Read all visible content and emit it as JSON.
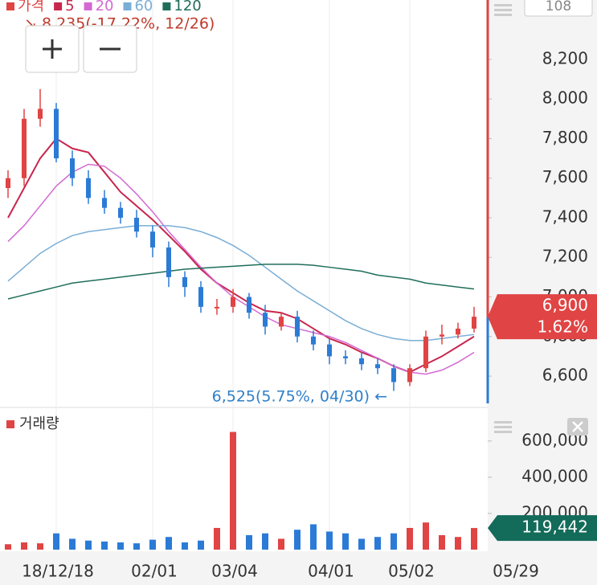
{
  "chart_data": [
    {
      "type": "candlestick",
      "categories": [
        null,
        null,
        null,
        "18/12/18",
        null,
        null,
        null,
        null,
        null,
        "02/01",
        null,
        null,
        null,
        null,
        "03/04",
        null,
        null,
        null,
        null,
        null,
        "04/01",
        null,
        null,
        null,
        null,
        "05/02",
        null,
        null,
        null,
        null
      ],
      "x_end_label": "05/29",
      "price_label": "가격",
      "open": [
        7550,
        7600,
        7900,
        7950,
        7700,
        7600,
        7500,
        7450,
        7400,
        7330,
        7250,
        7100,
        7050,
        6950,
        6950,
        7000,
        6920,
        6850,
        6900,
        6800,
        6760,
        6700,
        6690,
        6660,
        6640,
        6570,
        6640,
        6800,
        6810,
        6840
      ],
      "high": [
        7640,
        7950,
        8050,
        7980,
        7740,
        7640,
        7540,
        7480,
        7440,
        7360,
        7280,
        7130,
        7080,
        6990,
        7040,
        7020,
        6960,
        6920,
        6930,
        6830,
        6790,
        6730,
        6720,
        6690,
        6660,
        6660,
        6830,
        6860,
        6870,
        6950
      ],
      "low": [
        7500,
        7560,
        7860,
        7680,
        7560,
        7470,
        7420,
        7370,
        7300,
        7200,
        7050,
        7000,
        6920,
        6910,
        6920,
        6890,
        6810,
        6830,
        6770,
        6730,
        6660,
        6660,
        6630,
        6610,
        6525,
        6550,
        6620,
        6760,
        6790,
        6820
      ],
      "close": [
        7600,
        7900,
        7950,
        7700,
        7600,
        7500,
        7450,
        7400,
        7330,
        7250,
        7100,
        7050,
        6950,
        6950,
        7000,
        6920,
        6850,
        6900,
        6800,
        6760,
        6700,
        6690,
        6660,
        6640,
        6570,
        6640,
        6800,
        6810,
        6840,
        6900
      ],
      "up_color": "#e04444",
      "down_color": "#2b7bd6",
      "series": [
        {
          "name": "5",
          "color": "#c8264e",
          "values": [
            7400,
            7550,
            7700,
            7800,
            7750,
            7730,
            7630,
            7530,
            7460,
            7390,
            7310,
            7230,
            7140,
            7070,
            7020,
            6970,
            6930,
            6920,
            6890,
            6840,
            6790,
            6760,
            6720,
            6690,
            6650,
            6620,
            6660,
            6700,
            6750,
            6800
          ]
        },
        {
          "name": "20",
          "color": "#d36ad3",
          "values": [
            7280,
            7360,
            7460,
            7560,
            7630,
            7670,
            7660,
            7600,
            7520,
            7430,
            7330,
            7240,
            7150,
            7070,
            7000,
            6950,
            6900,
            6860,
            6840,
            6820,
            6800,
            6770,
            6730,
            6690,
            6650,
            6620,
            6610,
            6630,
            6670,
            6720
          ]
        },
        {
          "name": "60",
          "color": "#7aaed6",
          "values": [
            7080,
            7150,
            7220,
            7270,
            7310,
            7330,
            7340,
            7350,
            7360,
            7360,
            7360,
            7350,
            7330,
            7300,
            7260,
            7210,
            7150,
            7090,
            7030,
            6980,
            6930,
            6880,
            6840,
            6810,
            6790,
            6780,
            6780,
            6790,
            6800,
            6810
          ]
        },
        {
          "name": "120",
          "color": "#1f6e5a",
          "values": [
            6990,
            7010,
            7030,
            7050,
            7070,
            7080,
            7090,
            7100,
            7110,
            7120,
            7130,
            7140,
            7145,
            7150,
            7155,
            7160,
            7165,
            7165,
            7165,
            7160,
            7150,
            7140,
            7130,
            7110,
            7100,
            7090,
            7070,
            7060,
            7050,
            7040
          ]
        }
      ],
      "ylim": [
        6450,
        8500
      ],
      "yticks": [
        {
          "value": 6600,
          "label": "6,600"
        },
        {
          "value": 6800,
          "label": "6,800"
        },
        {
          "value": 7000,
          "label": "7,000"
        },
        {
          "value": 7200,
          "label": "7,200"
        },
        {
          "value": 7400,
          "label": "7,400"
        },
        {
          "value": 7600,
          "label": "7,600"
        },
        {
          "value": 7800,
          "label": "7,800"
        },
        {
          "value": 8000,
          "label": "8,000"
        },
        {
          "value": 8200,
          "label": "8,200"
        }
      ],
      "high_annotation": "↘ 8,235(-17.22%, 12/26)",
      "low_annotation": "6,525(5.75%, 04/30) ←",
      "current_price": {
        "value": 6900,
        "label": "6,900"
      },
      "change_label": "1.62%",
      "top_badge": "108"
    },
    {
      "type": "bar",
      "title": "거래량",
      "values": [
        30000,
        40000,
        35000,
        90000,
        60000,
        50000,
        45000,
        40000,
        35000,
        55000,
        70000,
        40000,
        50000,
        120000,
        650000,
        80000,
        90000,
        60000,
        110000,
        140000,
        100000,
        90000,
        60000,
        70000,
        90000,
        120000,
        150000,
        80000,
        70000,
        119442
      ],
      "ylim": [
        0,
        750000
      ],
      "yticks": [
        {
          "value": 200000,
          "label": "200,000"
        },
        {
          "value": 400000,
          "label": "400,000"
        },
        {
          "value": 600000,
          "label": "600,000"
        }
      ],
      "current_volume": {
        "value": 119442,
        "label": "119,442"
      }
    }
  ]
}
